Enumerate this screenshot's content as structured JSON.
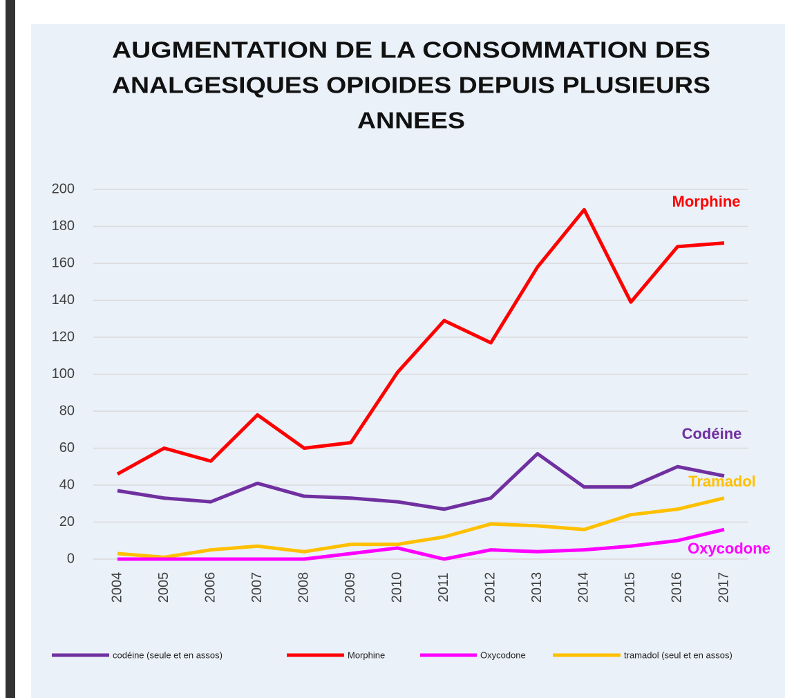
{
  "chart_data": {
    "type": "line",
    "title": [
      "AUGMENTATION  DE LA CONSOMMATION DES",
      "ANALGESIQUES OPIOIDES DEPUIS PLUSIEURS",
      "ANNEES"
    ],
    "categories": [
      "2004",
      "2005",
      "2006",
      "2007",
      "2008",
      "2009",
      "2010",
      "2011",
      "2012",
      "2013",
      "2014",
      "2015",
      "2016",
      "2017"
    ],
    "series": [
      {
        "name": "codéine (seule et en assos)",
        "color": "#7030a0",
        "values": [
          37,
          33,
          31,
          41,
          34,
          33,
          31,
          27,
          33,
          57,
          39,
          39,
          50,
          45
        ]
      },
      {
        "name": "Morphine",
        "color": "#ff0000",
        "values": [
          46,
          60,
          53,
          78,
          60,
          63,
          101,
          129,
          117,
          158,
          189,
          139,
          169,
          171
        ]
      },
      {
        "name": "Oxycodone",
        "color": "#ff00ff",
        "values": [
          0,
          0,
          0,
          0,
          0,
          3,
          6,
          0,
          5,
          4,
          5,
          7,
          10,
          16
        ]
      },
      {
        "name": "tramadol (seul et en assos)",
        "color": "#ffc000",
        "values": [
          3,
          1,
          5,
          7,
          4,
          8,
          8,
          12,
          19,
          18,
          16,
          24,
          27,
          33
        ]
      }
    ],
    "annotations": [
      {
        "text": "Morphine",
        "color": "#ff0000"
      },
      {
        "text": "Codéine",
        "color": "#7030a0"
      },
      {
        "text": "Tramadol",
        "color": "#ffc000"
      },
      {
        "text": "Oxycodone",
        "color": "#ff00ff"
      }
    ],
    "ylim": [
      0,
      200
    ],
    "yticks": [
      0,
      20,
      40,
      60,
      80,
      100,
      120,
      140,
      160,
      180,
      200
    ],
    "grid": true,
    "legend": "bottom"
  }
}
